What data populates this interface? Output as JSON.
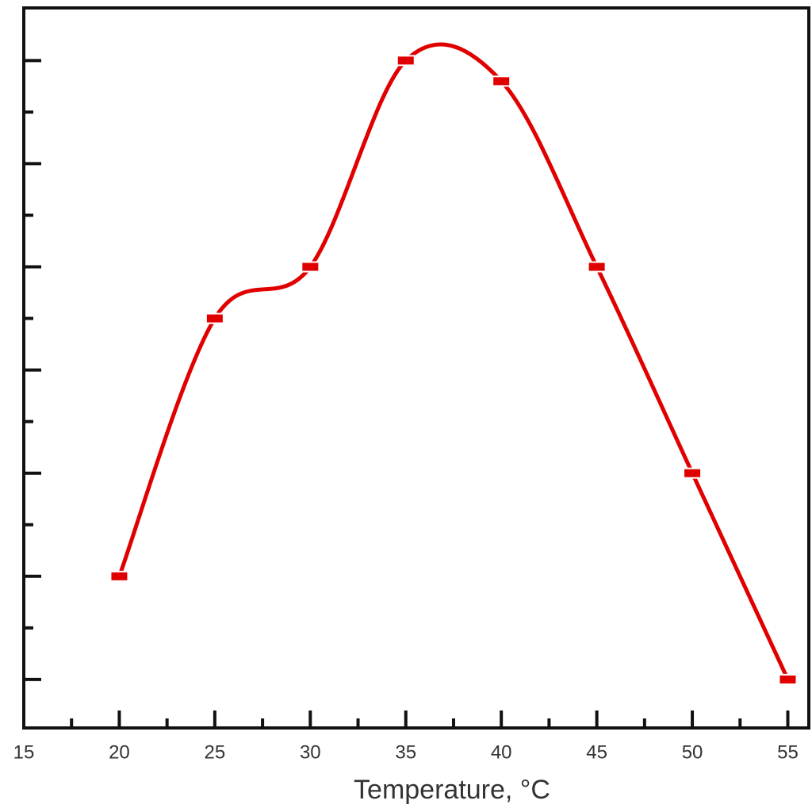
{
  "chart_data": {
    "type": "line",
    "x_label": "Temperature, °C",
    "x": [
      20,
      25,
      30,
      35,
      40,
      45,
      50,
      55
    ],
    "series": [
      {
        "color": "#e00000",
        "values": [
          2,
          4.5,
          5,
          7,
          6.8,
          5,
          3,
          1
        ]
      }
    ],
    "xlim": [
      15,
      56.1
    ],
    "xticks": [
      15,
      20,
      25,
      30,
      35,
      40,
      45,
      50,
      55
    ],
    "ylim": [
      0.53,
      7.51
    ],
    "yticks": [
      1,
      2,
      3,
      4,
      5,
      6,
      7
    ],
    "smooth": true
  }
}
